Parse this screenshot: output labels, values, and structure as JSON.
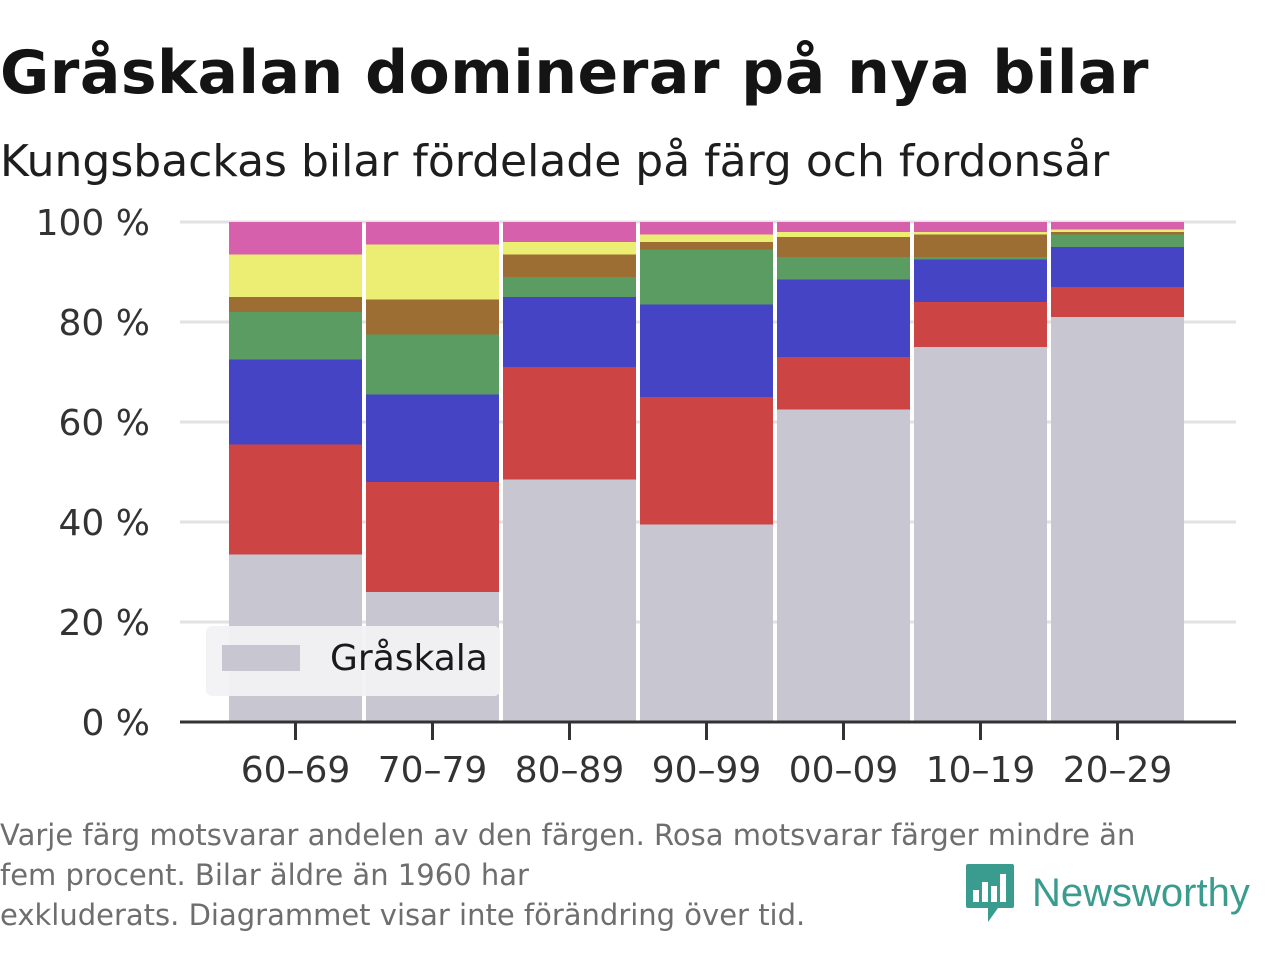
{
  "title": "Gråskalan dominerar på nya bilar",
  "subtitle": "Kungsbackas bilar fördelade på färg och fordonsår",
  "footnote": {
    "line1": "Varje färg motsvarar andelen av den färgen. Rosa motsvarar färger mindre än",
    "line2": "fem procent. Bilar äldre än 1960 har",
    "line3": "exkluderats. Diagrammet visar inte förändring över tid."
  },
  "brand": {
    "name": "Newsworthy",
    "color": "#3a9c8f",
    "icon": "bar-chart-speech-bubble-icon"
  },
  "chart_data": {
    "type": "bar",
    "stacked": true,
    "categories": [
      "60–69",
      "70–79",
      "80–89",
      "90–99",
      "00–09",
      "10–19",
      "20–29"
    ],
    "y_tick_labels": [
      "0 %",
      "20 %",
      "40 %",
      "60 %",
      "80 %",
      "100 %"
    ],
    "y_ticks": [
      0,
      20,
      40,
      60,
      80,
      100
    ],
    "ylim": [
      0,
      100
    ],
    "grid": true,
    "legend": {
      "position": "bottom-left",
      "entries": [
        "Gråskala"
      ]
    },
    "series": [
      {
        "name": "Gråskala",
        "color": "#c8c6d1",
        "values": [
          33.5,
          26,
          48.5,
          39.5,
          62.5,
          75,
          81
        ]
      },
      {
        "color": "#cc4444",
        "values": [
          22,
          22,
          22.5,
          25.5,
          10.5,
          9,
          6
        ]
      },
      {
        "color": "#4444c4",
        "values": [
          17,
          17.5,
          14,
          18.5,
          15.5,
          8.5,
          8
        ]
      },
      {
        "color": "#5a9c62",
        "values": [
          9.5,
          12,
          4,
          11,
          4.5,
          0.5,
          2.5
        ]
      },
      {
        "color": "#9c6e34",
        "values": [
          3,
          7,
          4.5,
          1.5,
          4,
          4.5,
          0.5
        ]
      },
      {
        "color": "#ecee74",
        "values": [
          8.5,
          11,
          2.5,
          1.5,
          1,
          0.5,
          0.5
        ]
      },
      {
        "color": "#d760ac",
        "values": [
          6.5,
          4.5,
          4,
          2.5,
          2,
          2,
          1.5
        ]
      }
    ]
  }
}
